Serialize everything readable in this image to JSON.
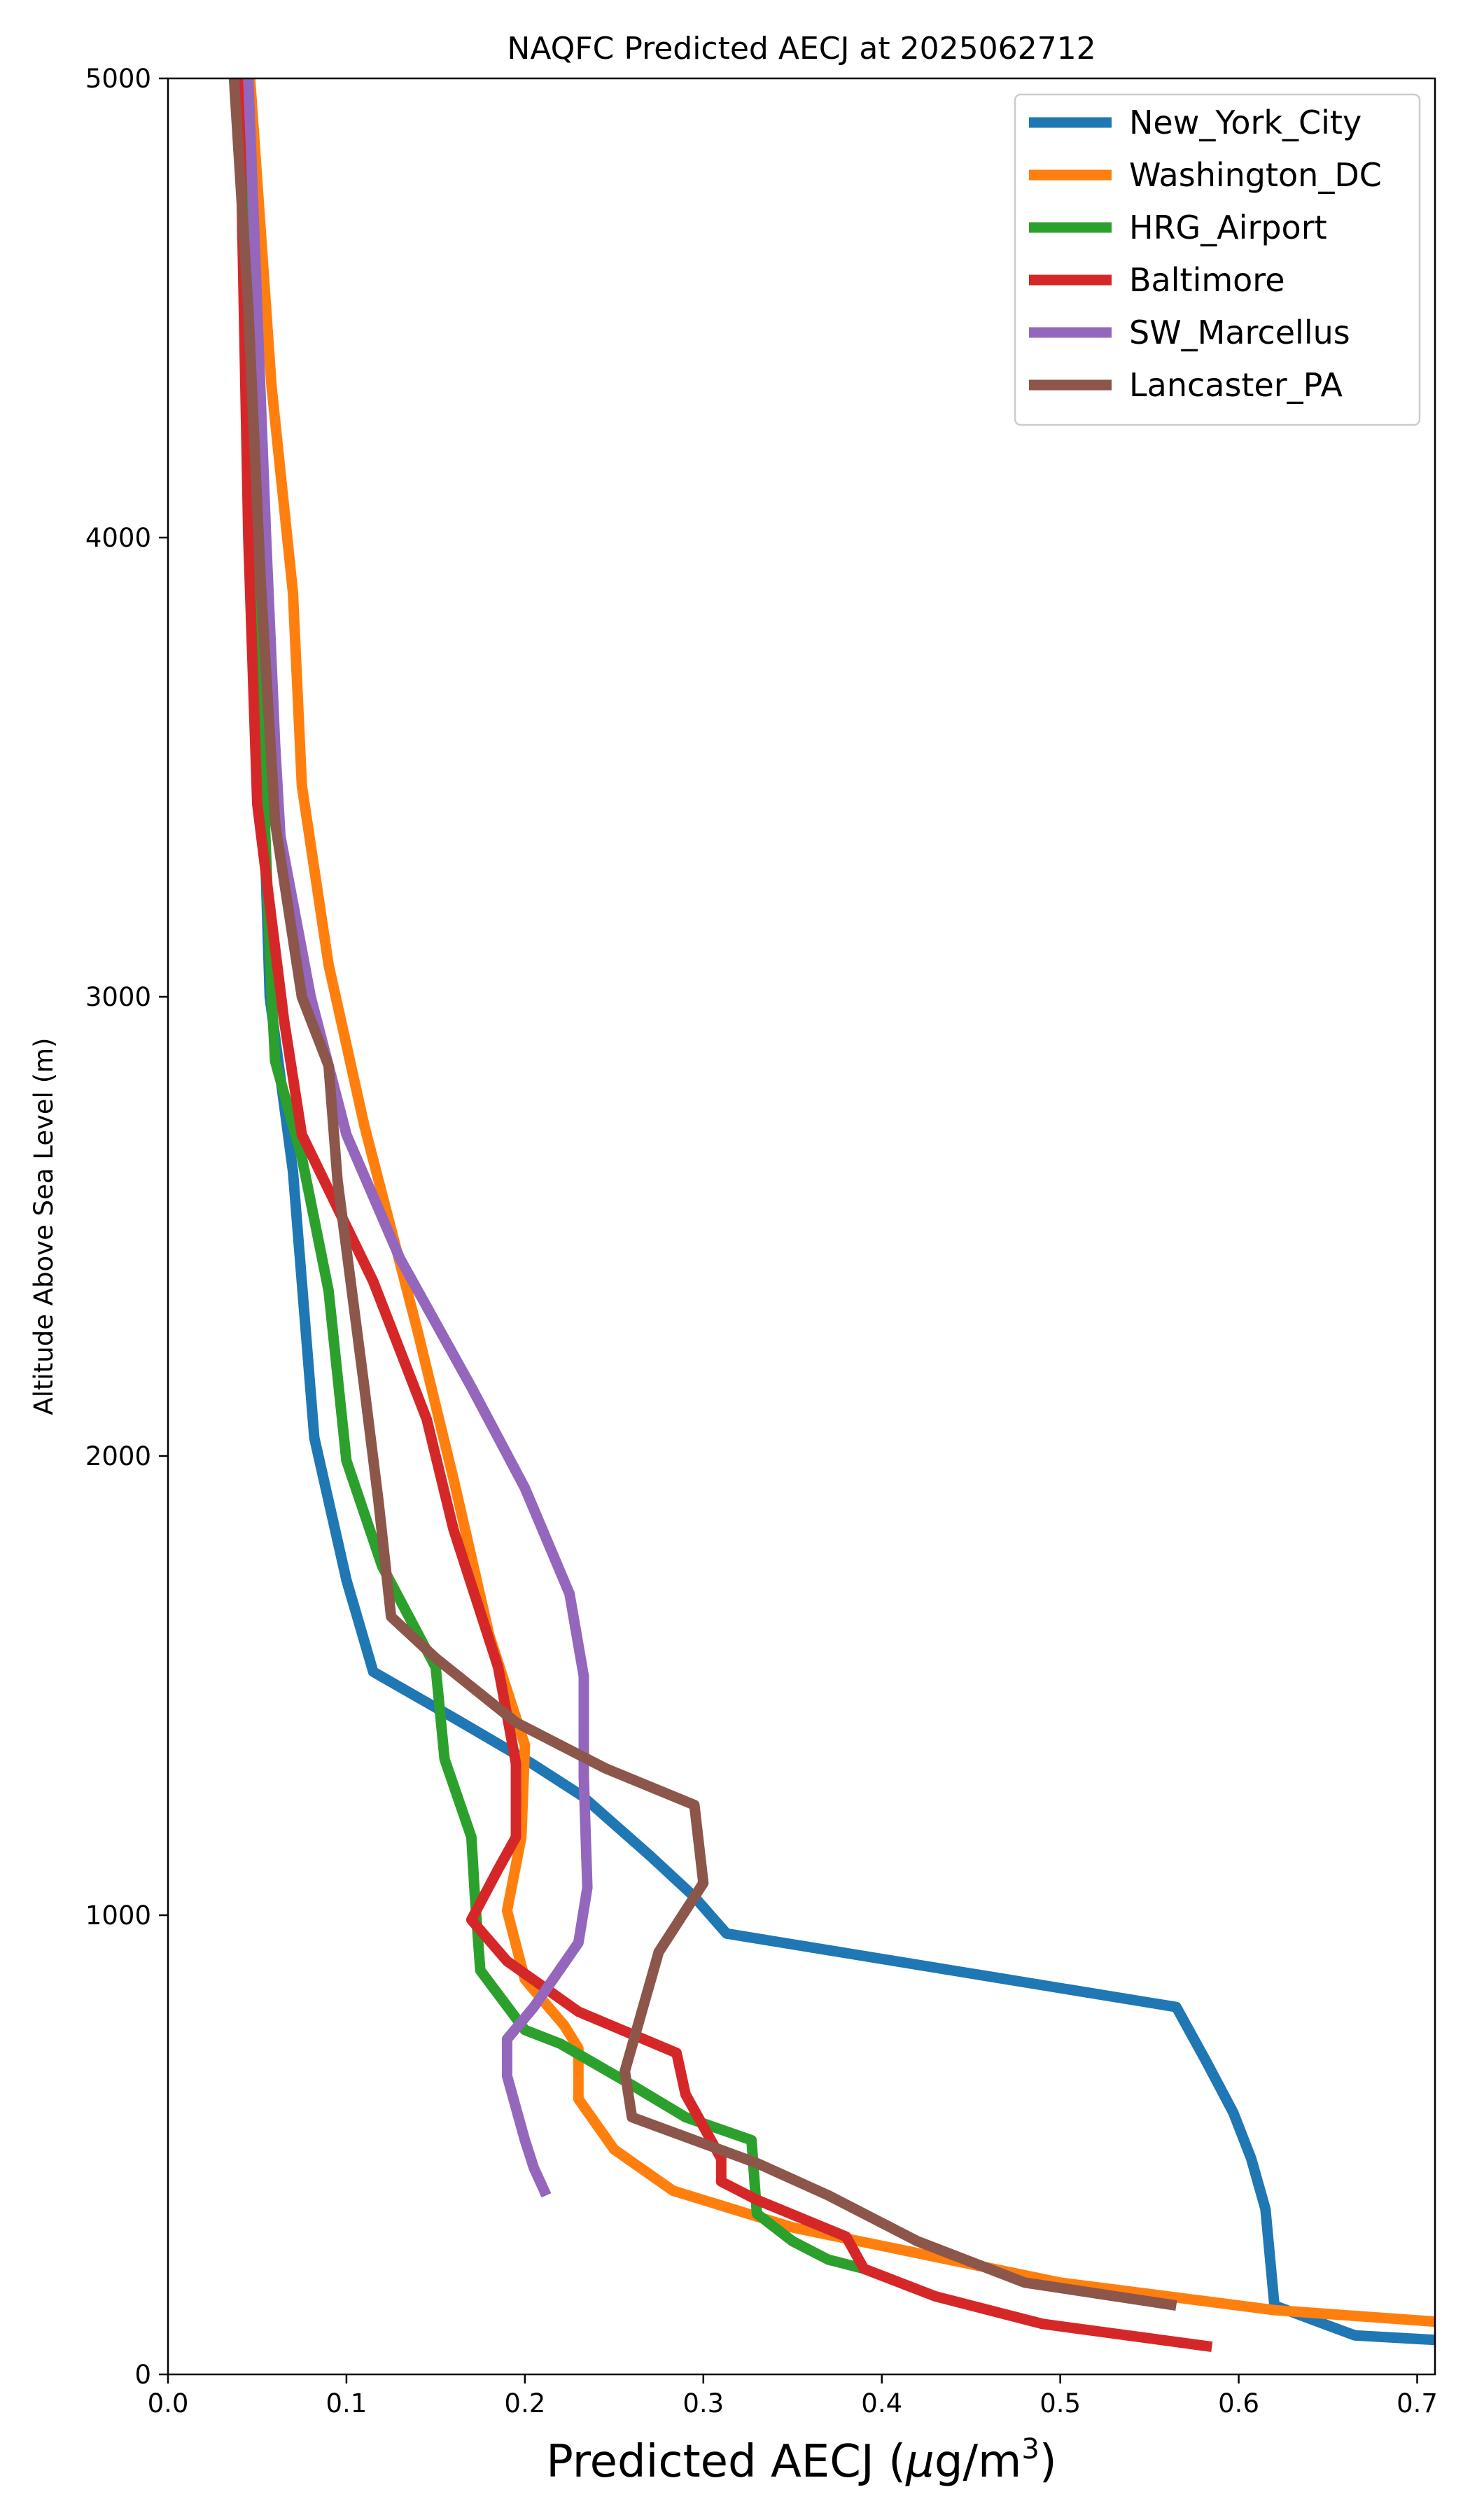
{
  "chart_data": {
    "type": "line",
    "title": "NAQFC Predicted AECJ at 2025062712",
    "xlabel": "Predicted AECJ (μg/m³)",
    "xlabel_main": "Predicted AECJ (",
    "xlabel_unit_mu": "μ",
    "xlabel_unit_g": "g/m",
    "xlabel_unit_exp": "3",
    "xlabel_close": ")",
    "ylabel": "Altitude Above Sea Level (m)",
    "xlim": [
      0,
      0.71
    ],
    "ylim": [
      0,
      5000
    ],
    "xticks": [
      0.0,
      0.1,
      0.2,
      0.3,
      0.4,
      0.5,
      0.6,
      0.7
    ],
    "xtick_labels": [
      "0.0",
      "0.1",
      "0.2",
      "0.3",
      "0.4",
      "0.5",
      "0.6",
      "0.7"
    ],
    "yticks": [
      0,
      1000,
      2000,
      3000,
      4000,
      5000
    ],
    "ytick_labels": [
      "0",
      "1000",
      "2000",
      "3000",
      "4000",
      "5000"
    ],
    "grid": false,
    "legend_position": "top-right",
    "series": [
      {
        "name": "New_York_City",
        "color": "#1f77b4",
        "points": [
          [
            0.71,
            75
          ],
          [
            0.665,
            85
          ],
          [
            0.62,
            150
          ],
          [
            0.615,
            360
          ],
          [
            0.607,
            470
          ],
          [
            0.597,
            570
          ],
          [
            0.582,
            680
          ],
          [
            0.565,
            800
          ],
          [
            0.313,
            960
          ],
          [
            0.295,
            1040
          ],
          [
            0.27,
            1130
          ],
          [
            0.232,
            1260
          ],
          [
            0.204,
            1330
          ],
          [
            0.16,
            1430
          ],
          [
            0.115,
            1530
          ],
          [
            0.1,
            1730
          ],
          [
            0.082,
            2040
          ],
          [
            0.07,
            2620
          ],
          [
            0.057,
            3000
          ],
          [
            0.05,
            3850
          ],
          [
            0.045,
            4550
          ],
          [
            0.039,
            5000
          ]
        ]
      },
      {
        "name": "Washington_DC",
        "color": "#ff7f0e",
        "points": [
          [
            0.71,
            115
          ],
          [
            0.62,
            140
          ],
          [
            0.5,
            200
          ],
          [
            0.4,
            280
          ],
          [
            0.35,
            320
          ],
          [
            0.283,
            400
          ],
          [
            0.25,
            490
          ],
          [
            0.23,
            600
          ],
          [
            0.23,
            710
          ],
          [
            0.222,
            760
          ],
          [
            0.2,
            860
          ],
          [
            0.19,
            1010
          ],
          [
            0.198,
            1170
          ],
          [
            0.2,
            1370
          ],
          [
            0.18,
            1610
          ],
          [
            0.16,
            1950
          ],
          [
            0.14,
            2270
          ],
          [
            0.11,
            2720
          ],
          [
            0.09,
            3070
          ],
          [
            0.075,
            3460
          ],
          [
            0.07,
            3880
          ],
          [
            0.058,
            4330
          ],
          [
            0.046,
            5000
          ]
        ]
      },
      {
        "name": "HRG_Airport",
        "color": "#2ca02c",
        "points": [
          [
            0.39,
            230
          ],
          [
            0.37,
            250
          ],
          [
            0.35,
            290
          ],
          [
            0.33,
            350
          ],
          [
            0.327,
            510
          ],
          [
            0.29,
            560
          ],
          [
            0.26,
            630
          ],
          [
            0.22,
            720
          ],
          [
            0.2,
            750
          ],
          [
            0.175,
            880
          ],
          [
            0.172,
            1040
          ],
          [
            0.17,
            1170
          ],
          [
            0.155,
            1340
          ],
          [
            0.15,
            1540
          ],
          [
            0.12,
            1760
          ],
          [
            0.1,
            1990
          ],
          [
            0.09,
            2360
          ],
          [
            0.075,
            2650
          ],
          [
            0.06,
            2860
          ],
          [
            0.058,
            3010
          ],
          [
            0.052,
            3600
          ],
          [
            0.045,
            4500
          ],
          [
            0.04,
            5000
          ]
        ]
      },
      {
        "name": "Baltimore",
        "color": "#d62728",
        "points": [
          [
            0.585,
            60
          ],
          [
            0.49,
            110
          ],
          [
            0.43,
            170
          ],
          [
            0.39,
            230
          ],
          [
            0.38,
            300
          ],
          [
            0.33,
            380
          ],
          [
            0.31,
            420
          ],
          [
            0.31,
            470
          ],
          [
            0.29,
            610
          ],
          [
            0.285,
            700
          ],
          [
            0.23,
            790
          ],
          [
            0.19,
            900
          ],
          [
            0.17,
            990
          ],
          [
            0.185,
            1100
          ],
          [
            0.195,
            1170
          ],
          [
            0.195,
            1330
          ],
          [
            0.185,
            1540
          ],
          [
            0.16,
            1840
          ],
          [
            0.145,
            2080
          ],
          [
            0.115,
            2380
          ],
          [
            0.09,
            2580
          ],
          [
            0.075,
            2700
          ],
          [
            0.065,
            2950
          ],
          [
            0.05,
            3420
          ],
          [
            0.045,
            4000
          ],
          [
            0.04,
            5000
          ]
        ]
      },
      {
        "name": "SW_Marcellus",
        "color": "#9467bd",
        "points": [
          [
            0.212,
            390
          ],
          [
            0.205,
            450
          ],
          [
            0.2,
            510
          ],
          [
            0.195,
            580
          ],
          [
            0.19,
            650
          ],
          [
            0.19,
            730
          ],
          [
            0.205,
            800
          ],
          [
            0.23,
            940
          ],
          [
            0.235,
            1060
          ],
          [
            0.233,
            1300
          ],
          [
            0.233,
            1520
          ],
          [
            0.225,
            1700
          ],
          [
            0.2,
            1930
          ],
          [
            0.17,
            2150
          ],
          [
            0.13,
            2430
          ],
          [
            0.1,
            2700
          ],
          [
            0.08,
            3000
          ],
          [
            0.063,
            3350
          ],
          [
            0.06,
            3550
          ],
          [
            0.055,
            4000
          ],
          [
            0.045,
            5000
          ]
        ]
      },
      {
        "name": "Lancaster_PA",
        "color": "#8c564b",
        "points": [
          [
            0.565,
            150
          ],
          [
            0.48,
            200
          ],
          [
            0.42,
            290
          ],
          [
            0.37,
            390
          ],
          [
            0.33,
            460
          ],
          [
            0.26,
            560
          ],
          [
            0.256,
            660
          ],
          [
            0.275,
            920
          ],
          [
            0.3,
            1070
          ],
          [
            0.295,
            1240
          ],
          [
            0.245,
            1320
          ],
          [
            0.195,
            1420
          ],
          [
            0.15,
            1560
          ],
          [
            0.125,
            1650
          ],
          [
            0.118,
            1900
          ],
          [
            0.11,
            2150
          ],
          [
            0.095,
            2600
          ],
          [
            0.09,
            2850
          ],
          [
            0.075,
            3000
          ],
          [
            0.06,
            3380
          ],
          [
            0.052,
            3900
          ],
          [
            0.045,
            4500
          ],
          [
            0.037,
            5000
          ]
        ]
      }
    ]
  }
}
